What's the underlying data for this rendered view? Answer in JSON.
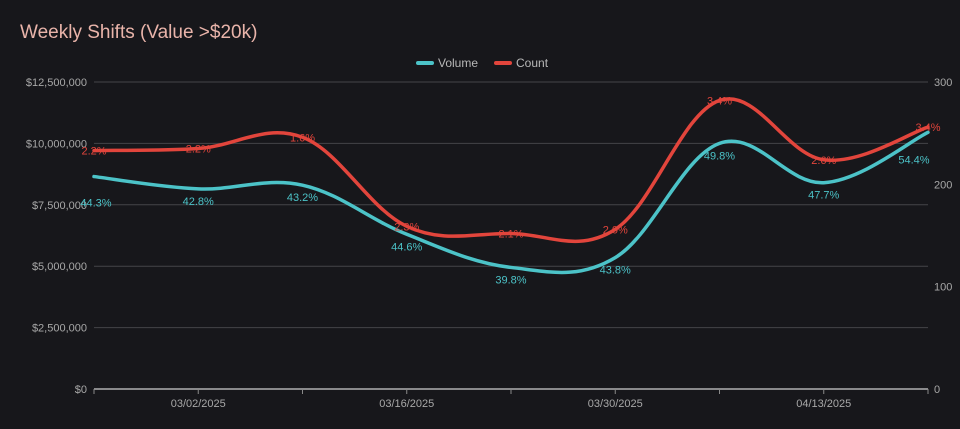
{
  "chart_data": {
    "type": "line",
    "title": "Weekly Shifts (Value >$20k)",
    "legend_position": "top-center",
    "grid": true,
    "x": [
      "02/23/2025",
      "03/02/2025",
      "03/09/2025",
      "03/16/2025",
      "03/23/2025",
      "03/30/2025",
      "04/06/2025",
      "04/13/2025",
      "04/20/2025"
    ],
    "x_tick_labels": [
      "03/02/2025",
      "03/16/2025",
      "03/30/2025",
      "04/13/2025"
    ],
    "y_left": {
      "ylim": [
        0,
        12500000
      ],
      "ticks": [
        "$0",
        "$2,500,000",
        "$5,000,000",
        "$7,500,000",
        "$10,000,000",
        "$12,500,000"
      ]
    },
    "y_right": {
      "ylim": [
        0,
        300
      ],
      "ticks": [
        "0",
        "100",
        "200",
        "300"
      ]
    },
    "series": [
      {
        "name": "Volume",
        "axis": "left",
        "color": "#4cc3c8",
        "values": [
          8650000,
          8150000,
          8300000,
          6300000,
          4950000,
          5350000,
          10000000,
          8400000,
          10450000
        ],
        "labels": [
          "44.3%",
          "42.8%",
          "43.2%",
          "44.6%",
          "39.8%",
          "43.8%",
          "49.8%",
          "47.7%",
          "54.4%"
        ]
      },
      {
        "name": "Count",
        "axis": "right",
        "color": "#e2453c",
        "values": [
          233,
          235,
          246,
          159,
          152,
          156,
          282,
          224,
          256
        ],
        "labels": [
          "2.2%",
          "2.2%",
          "1.6%",
          "2.3%",
          "2.1%",
          "2.0%",
          "3.4%",
          "2.6%",
          "3.4%"
        ]
      }
    ]
  }
}
